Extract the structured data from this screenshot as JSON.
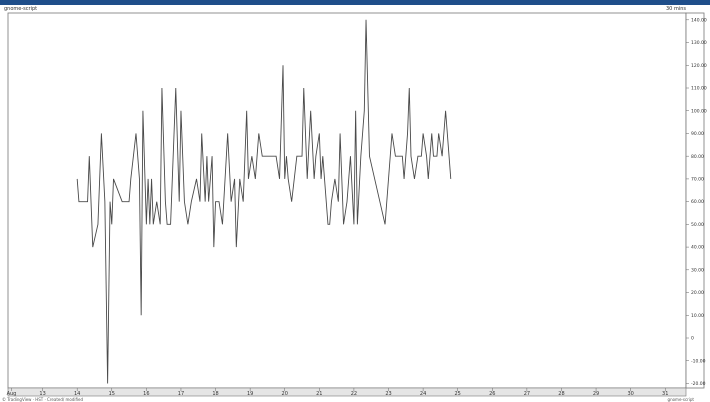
{
  "header": {
    "left_title": "gnome-script",
    "right_title": "30 mins"
  },
  "footer": {
    "left_note": "© TradingView · HST · Created/ modified",
    "right_note": "gnome-script"
  },
  "colors": {
    "topbar": "#1f4e8a",
    "line": "#4a4a4a",
    "frame": "#777777",
    "bottom_axis": "#e5e5e5"
  },
  "chart_data": {
    "type": "line",
    "title": "",
    "xlabel": "",
    "ylabel": "",
    "x_ticks": [
      {
        "label": "Aug",
        "x": 12.1
      },
      {
        "label": "13",
        "x": 13
      },
      {
        "label": "14",
        "x": 14
      },
      {
        "label": "15",
        "x": 15
      },
      {
        "label": "16",
        "x": 16
      },
      {
        "label": "17",
        "x": 17
      },
      {
        "label": "18",
        "x": 18
      },
      {
        "label": "19",
        "x": 19
      },
      {
        "label": "20",
        "x": 20
      },
      {
        "label": "21",
        "x": 21
      },
      {
        "label": "22",
        "x": 22
      },
      {
        "label": "23",
        "x": 23
      },
      {
        "label": "24",
        "x": 24
      },
      {
        "label": "25",
        "x": 25
      },
      {
        "label": "26",
        "x": 26
      },
      {
        "label": "27",
        "x": 27
      },
      {
        "label": "28",
        "x": 28
      },
      {
        "label": "29",
        "x": 29
      },
      {
        "label": "30",
        "x": 30
      },
      {
        "label": "31",
        "x": 31
      }
    ],
    "y_ticks": [
      -20,
      -10,
      0,
      10,
      20,
      30,
      40,
      50,
      60,
      70,
      80,
      90,
      100,
      110,
      120,
      130,
      140
    ],
    "y_tick_labels": [
      "-20.00",
      "-10.00",
      "0",
      "10.00",
      "20.00",
      "30.00",
      "40.00",
      "50.00",
      "60.00",
      "70.00",
      "80.00",
      "90.00",
      "100.00",
      "110.00",
      "120.00",
      "130.00",
      "140.00"
    ],
    "xlim": [
      12,
      31.6
    ],
    "ylim": [
      -22,
      143
    ],
    "grid": false,
    "series": [
      {
        "values": [
          [
            14.0,
            70
          ],
          [
            14.05,
            60
          ],
          [
            14.3,
            60
          ],
          [
            14.35,
            80
          ],
          [
            14.45,
            40
          ],
          [
            14.6,
            50
          ],
          [
            14.7,
            90
          ],
          [
            14.8,
            60
          ],
          [
            14.88,
            -20
          ],
          [
            14.95,
            60
          ],
          [
            15.0,
            50
          ],
          [
            15.05,
            70
          ],
          [
            15.3,
            60
          ],
          [
            15.5,
            60
          ],
          [
            15.55,
            70
          ],
          [
            15.7,
            90
          ],
          [
            15.8,
            70
          ],
          [
            15.85,
            10
          ],
          [
            15.9,
            100
          ],
          [
            16.0,
            50
          ],
          [
            16.05,
            70
          ],
          [
            16.1,
            50
          ],
          [
            16.15,
            70
          ],
          [
            16.2,
            50
          ],
          [
            16.3,
            60
          ],
          [
            16.4,
            50
          ],
          [
            16.45,
            110
          ],
          [
            16.55,
            60
          ],
          [
            16.6,
            50
          ],
          [
            16.7,
            50
          ],
          [
            16.85,
            110
          ],
          [
            16.95,
            60
          ],
          [
            17.0,
            100
          ],
          [
            17.1,
            60
          ],
          [
            17.2,
            50
          ],
          [
            17.3,
            60
          ],
          [
            17.45,
            70
          ],
          [
            17.55,
            60
          ],
          [
            17.6,
            90
          ],
          [
            17.7,
            60
          ],
          [
            17.75,
            80
          ],
          [
            17.8,
            60
          ],
          [
            17.9,
            80
          ],
          [
            17.95,
            40
          ],
          [
            18.0,
            60
          ],
          [
            18.1,
            60
          ],
          [
            18.2,
            50
          ],
          [
            18.35,
            90
          ],
          [
            18.45,
            60
          ],
          [
            18.55,
            70
          ],
          [
            18.6,
            40
          ],
          [
            18.7,
            70
          ],
          [
            18.8,
            60
          ],
          [
            18.9,
            100
          ],
          [
            18.95,
            70
          ],
          [
            19.05,
            80
          ],
          [
            19.15,
            70
          ],
          [
            19.25,
            90
          ],
          [
            19.35,
            80
          ],
          [
            19.45,
            80
          ],
          [
            19.75,
            80
          ],
          [
            19.85,
            70
          ],
          [
            19.95,
            120
          ],
          [
            20.0,
            70
          ],
          [
            20.05,
            80
          ],
          [
            20.1,
            70
          ],
          [
            20.2,
            60
          ],
          [
            20.35,
            80
          ],
          [
            20.5,
            80
          ],
          [
            20.55,
            110
          ],
          [
            20.65,
            70
          ],
          [
            20.75,
            100
          ],
          [
            20.85,
            70
          ],
          [
            20.9,
            80
          ],
          [
            21.0,
            90
          ],
          [
            21.05,
            70
          ],
          [
            21.1,
            80
          ],
          [
            21.15,
            70
          ],
          [
            21.25,
            50
          ],
          [
            21.3,
            50
          ],
          [
            21.35,
            60
          ],
          [
            21.45,
            70
          ],
          [
            21.55,
            60
          ],
          [
            21.6,
            90
          ],
          [
            21.7,
            50
          ],
          [
            21.8,
            60
          ],
          [
            21.9,
            80
          ],
          [
            22.0,
            50
          ],
          [
            22.05,
            100
          ],
          [
            22.1,
            50
          ],
          [
            22.2,
            80
          ],
          [
            22.3,
            100
          ],
          [
            22.35,
            140
          ],
          [
            22.45,
            80
          ],
          [
            22.9,
            50
          ],
          [
            23.1,
            90
          ],
          [
            23.2,
            80
          ],
          [
            23.4,
            80
          ],
          [
            23.45,
            70
          ],
          [
            23.5,
            80
          ],
          [
            23.55,
            90
          ],
          [
            23.6,
            110
          ],
          [
            23.65,
            80
          ],
          [
            23.75,
            70
          ],
          [
            23.85,
            80
          ],
          [
            23.9,
            80
          ],
          [
            23.95,
            80
          ],
          [
            24.0,
            90
          ],
          [
            24.1,
            80
          ],
          [
            24.15,
            70
          ],
          [
            24.2,
            80
          ],
          [
            24.25,
            90
          ],
          [
            24.3,
            80
          ],
          [
            24.4,
            80
          ],
          [
            24.45,
            90
          ],
          [
            24.55,
            80
          ],
          [
            24.65,
            100
          ],
          [
            24.75,
            80
          ],
          [
            24.8,
            70
          ]
        ]
      }
    ]
  }
}
